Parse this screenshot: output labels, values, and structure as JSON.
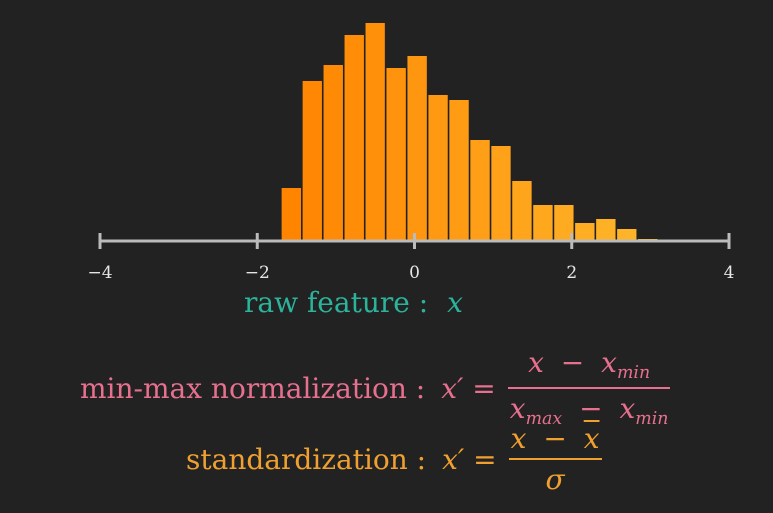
{
  "chart_data": {
    "type": "bar",
    "title": "",
    "xlabel": "raw feature : x",
    "ylabel": "",
    "xlim": [
      -4,
      4
    ],
    "xticks": [
      "−4",
      "−2",
      "0",
      "2",
      "4"
    ],
    "bins": [
      {
        "x0": -1.7,
        "x1": -1.433,
        "count": 53
      },
      {
        "x0": -1.433,
        "x1": -1.167,
        "count": 160
      },
      {
        "x0": -1.167,
        "x1": -0.9,
        "count": 176
      },
      {
        "x0": -0.9,
        "x1": -0.633,
        "count": 206
      },
      {
        "x0": -0.633,
        "x1": -0.367,
        "count": 218
      },
      {
        "x0": -0.367,
        "x1": -0.1,
        "count": 173
      },
      {
        "x0": -0.1,
        "x1": 0.167,
        "count": 185
      },
      {
        "x0": 0.167,
        "x1": 0.433,
        "count": 146
      },
      {
        "x0": 0.433,
        "x1": 0.7,
        "count": 141
      },
      {
        "x0": 0.7,
        "x1": 0.967,
        "count": 101
      },
      {
        "x0": 0.967,
        "x1": 1.233,
        "count": 95
      },
      {
        "x0": 1.233,
        "x1": 1.5,
        "count": 60
      },
      {
        "x0": 1.5,
        "x1": 1.767,
        "count": 36
      },
      {
        "x0": 1.767,
        "x1": 2.033,
        "count": 36
      },
      {
        "x0": 2.033,
        "x1": 2.3,
        "count": 18
      },
      {
        "x0": 2.3,
        "x1": 2.567,
        "count": 22
      },
      {
        "x0": 2.567,
        "x1": 2.833,
        "count": 12
      },
      {
        "x0": 2.833,
        "x1": 3.1,
        "count": 2
      }
    ],
    "ylim": [
      0,
      220
    ],
    "colors": {
      "bar_start": "#ff8400",
      "bar_end": "#ffb72b",
      "axis": "#bbbbbb"
    }
  },
  "labels": {
    "raw_feature": "raw feature :",
    "raw_var": "x",
    "minmax": "min-max normalization :",
    "standardization": "standardization :"
  },
  "equations": {
    "minmax": {
      "lhs": "x′ =",
      "num_x": "x",
      "num_minus": "−",
      "num_sub_x": "x",
      "num_sub": "min",
      "den_sub_x1": "x",
      "den_sub1": "max",
      "den_minus": "−",
      "den_sub_x2": "x",
      "den_sub2": "min"
    },
    "standard": {
      "lhs": "x′ =",
      "num_x": "x",
      "num_minus": "−",
      "num_xbar": "x",
      "den": "σ"
    }
  },
  "colors": {
    "teal": "#2bb39b",
    "pink": "#e7708f",
    "orange": "#f0a030",
    "text": "#e6e6e6"
  }
}
